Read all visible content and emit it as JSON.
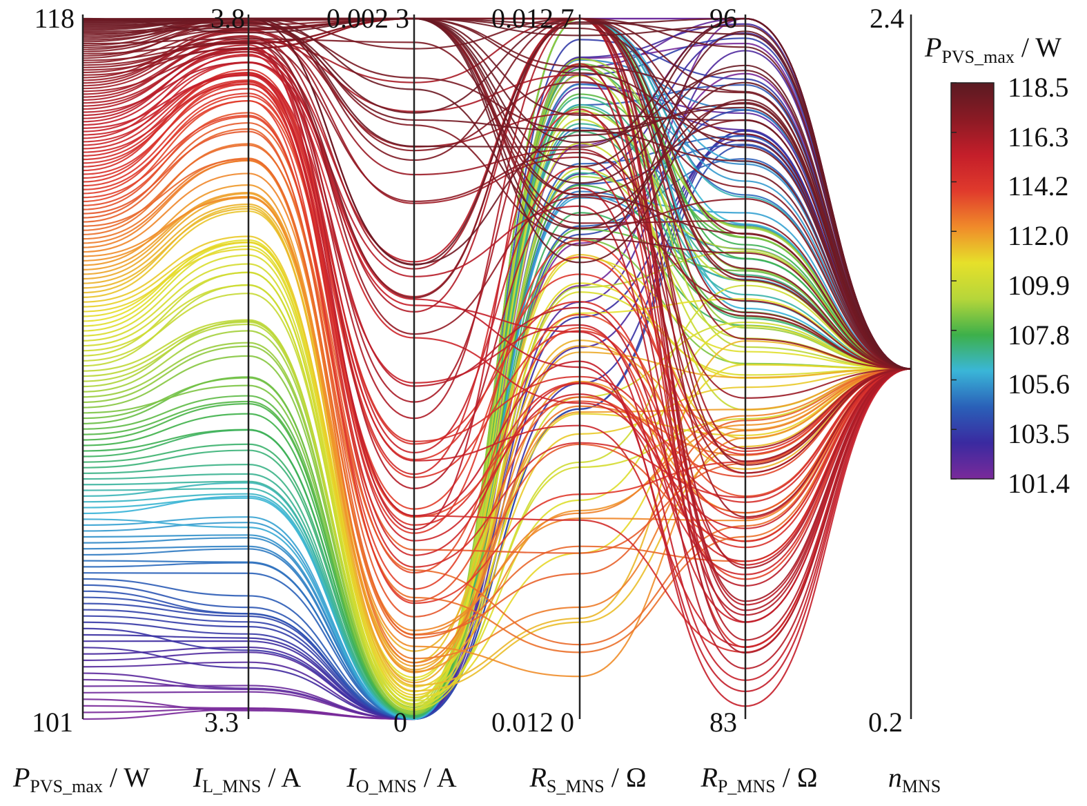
{
  "chart_data": {
    "type": "parallel_coordinates",
    "axes": [
      {
        "id": "ppvs",
        "title_main": "P",
        "title_sub": "PVS_max",
        "title_unit": " / W",
        "max_label": "118",
        "min_label": "101",
        "range": [
          101,
          118
        ]
      },
      {
        "id": "il",
        "title_main": "I",
        "title_sub": "L_MNS",
        "title_unit": " / A",
        "max_label": "3.8",
        "min_label": "3.3",
        "range": [
          3.3,
          3.8
        ]
      },
      {
        "id": "io",
        "title_main": "I",
        "title_sub": "O_MNS",
        "title_unit": " / A",
        "max_label": "0.002 3",
        "min_label": "0",
        "range": [
          0,
          0.0023
        ]
      },
      {
        "id": "rs",
        "title_main": "R",
        "title_sub": "S_MNS",
        "title_unit": " / Ω",
        "max_label": "0.012 7",
        "min_label": "0.012 0",
        "range": [
          0.012,
          0.0127
        ]
      },
      {
        "id": "rp",
        "title_main": "R",
        "title_sub": "P_MNS",
        "title_unit": " / Ω",
        "max_label": "96",
        "min_label": "83",
        "range": [
          83,
          96
        ]
      },
      {
        "id": "n",
        "title_main": "n",
        "title_sub": "MNS",
        "title_unit": "",
        "max_label": "2.4",
        "min_label": "0.2",
        "range": [
          0.2,
          2.4
        ]
      }
    ],
    "colorbar": {
      "title_main": "P",
      "title_sub": "PVS_max",
      "title_unit": " / W",
      "range": [
        101.4,
        118.5
      ],
      "tick_labels": [
        "118.5",
        "116.3",
        "114.2",
        "112.0",
        "109.9",
        "107.8",
        "105.6",
        "103.5",
        "101.4"
      ],
      "colors": [
        "#5a1a22",
        "#8a1a24",
        "#c41e2a",
        "#e03a2c",
        "#f08a2a",
        "#e6e02a",
        "#b6d63a",
        "#3db04a",
        "#3ab6d8",
        "#2a60b8",
        "#3a2aa0",
        "#7a2a9a"
      ]
    },
    "series_samples": [
      {
        "ppvs": 118.0,
        "il": 3.8,
        "io": 0.0023,
        "rs": 0.01262,
        "rp": 96.0,
        "n": 1.3
      },
      {
        "ppvs": 117.0,
        "il": 3.79,
        "io": 0.0023,
        "rs": 0.01269,
        "rp": 91.5,
        "n": 1.3
      },
      {
        "ppvs": 116.0,
        "il": 3.78,
        "io": 0.00135,
        "rs": 0.01265,
        "rp": 85.0,
        "n": 1.3
      },
      {
        "ppvs": 115.5,
        "il": 3.77,
        "io": 0.001,
        "rs": 0.01255,
        "rp": 84.5,
        "n": 1.3
      },
      {
        "ppvs": 114.0,
        "il": 3.75,
        "io": 0.0006,
        "rs": 0.0123,
        "rp": 86.5,
        "n": 1.3
      },
      {
        "ppvs": 112.2,
        "il": 3.68,
        "io": 0.0002,
        "rs": 0.01215,
        "rp": 88.0,
        "n": 1.3
      },
      {
        "ppvs": 110.0,
        "il": 3.62,
        "io": 5e-05,
        "rs": 0.01245,
        "rp": 90.0,
        "n": 1.3
      },
      {
        "ppvs": 108.5,
        "il": 3.55,
        "io": 2e-05,
        "rs": 0.0126,
        "rp": 91.0,
        "n": 1.3
      },
      {
        "ppvs": 106.0,
        "il": 3.45,
        "io": 0.0,
        "rs": 0.01265,
        "rp": 92.0,
        "n": 1.3
      },
      {
        "ppvs": 104.0,
        "il": 3.38,
        "io": 0.0,
        "rs": 0.01248,
        "rp": 94.0,
        "n": 1.3
      },
      {
        "ppvs": 102.5,
        "il": 3.34,
        "io": 0.0,
        "rs": 0.0125,
        "rp": 95.3,
        "n": 1.3
      },
      {
        "ppvs": 101.0,
        "il": 3.3,
        "io": 0.0,
        "rs": 0.01262,
        "rp": 96.0,
        "n": 1.3
      }
    ]
  }
}
